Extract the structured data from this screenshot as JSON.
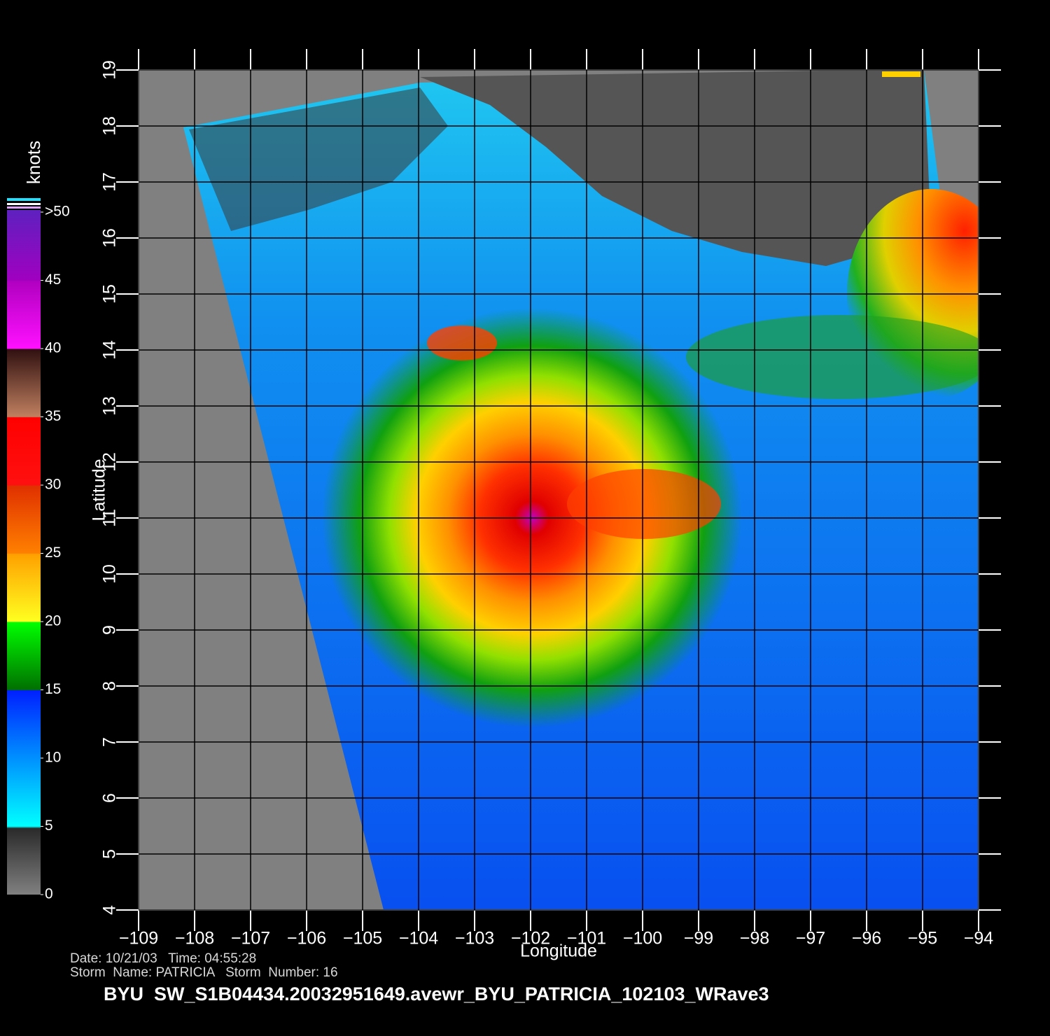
{
  "chart_data": {
    "type": "map",
    "title": "BYU  SW_S1B04434.20032951649.avewr_BYU_PATRICIA_102103_WRave3",
    "date_line": "Date: 10/21/03   Time: 04:55:28",
    "storm_line": "Storm  Name: PATRICIA   Storm  Number: 16",
    "xlabel": "Longitude",
    "ylabel": "Latitude",
    "xlim": [
      -109,
      -94
    ],
    "ylim": [
      4,
      19
    ],
    "xticks": [
      {
        "value": -109,
        "label": "−109"
      },
      {
        "value": -108,
        "label": "−108"
      },
      {
        "value": -107,
        "label": "−107"
      },
      {
        "value": -106,
        "label": "−106"
      },
      {
        "value": -105,
        "label": "−105"
      },
      {
        "value": -104,
        "label": "−104"
      },
      {
        "value": -103,
        "label": "−103"
      },
      {
        "value": -102,
        "label": "−102"
      },
      {
        "value": -101,
        "label": "−101"
      },
      {
        "value": -100,
        "label": "−100"
      },
      {
        "value": -99,
        "label": "−99"
      },
      {
        "value": -98,
        "label": "−98"
      },
      {
        "value": -97,
        "label": "−97"
      },
      {
        "value": -96,
        "label": "−96"
      },
      {
        "value": -95,
        "label": "−95"
      },
      {
        "value": -94,
        "label": "−94"
      }
    ],
    "yticks": [
      4,
      5,
      6,
      7,
      8,
      9,
      10,
      11,
      12,
      13,
      14,
      15,
      16,
      17,
      18,
      19
    ],
    "grid": true,
    "colorbar": {
      "label": "knots",
      "lim": [
        0,
        50
      ],
      "ticks": [
        0,
        5,
        10,
        15,
        20,
        25,
        30,
        35,
        40,
        45,
        {
          "value": 50,
          "label": ">50"
        }
      ]
    }
  }
}
